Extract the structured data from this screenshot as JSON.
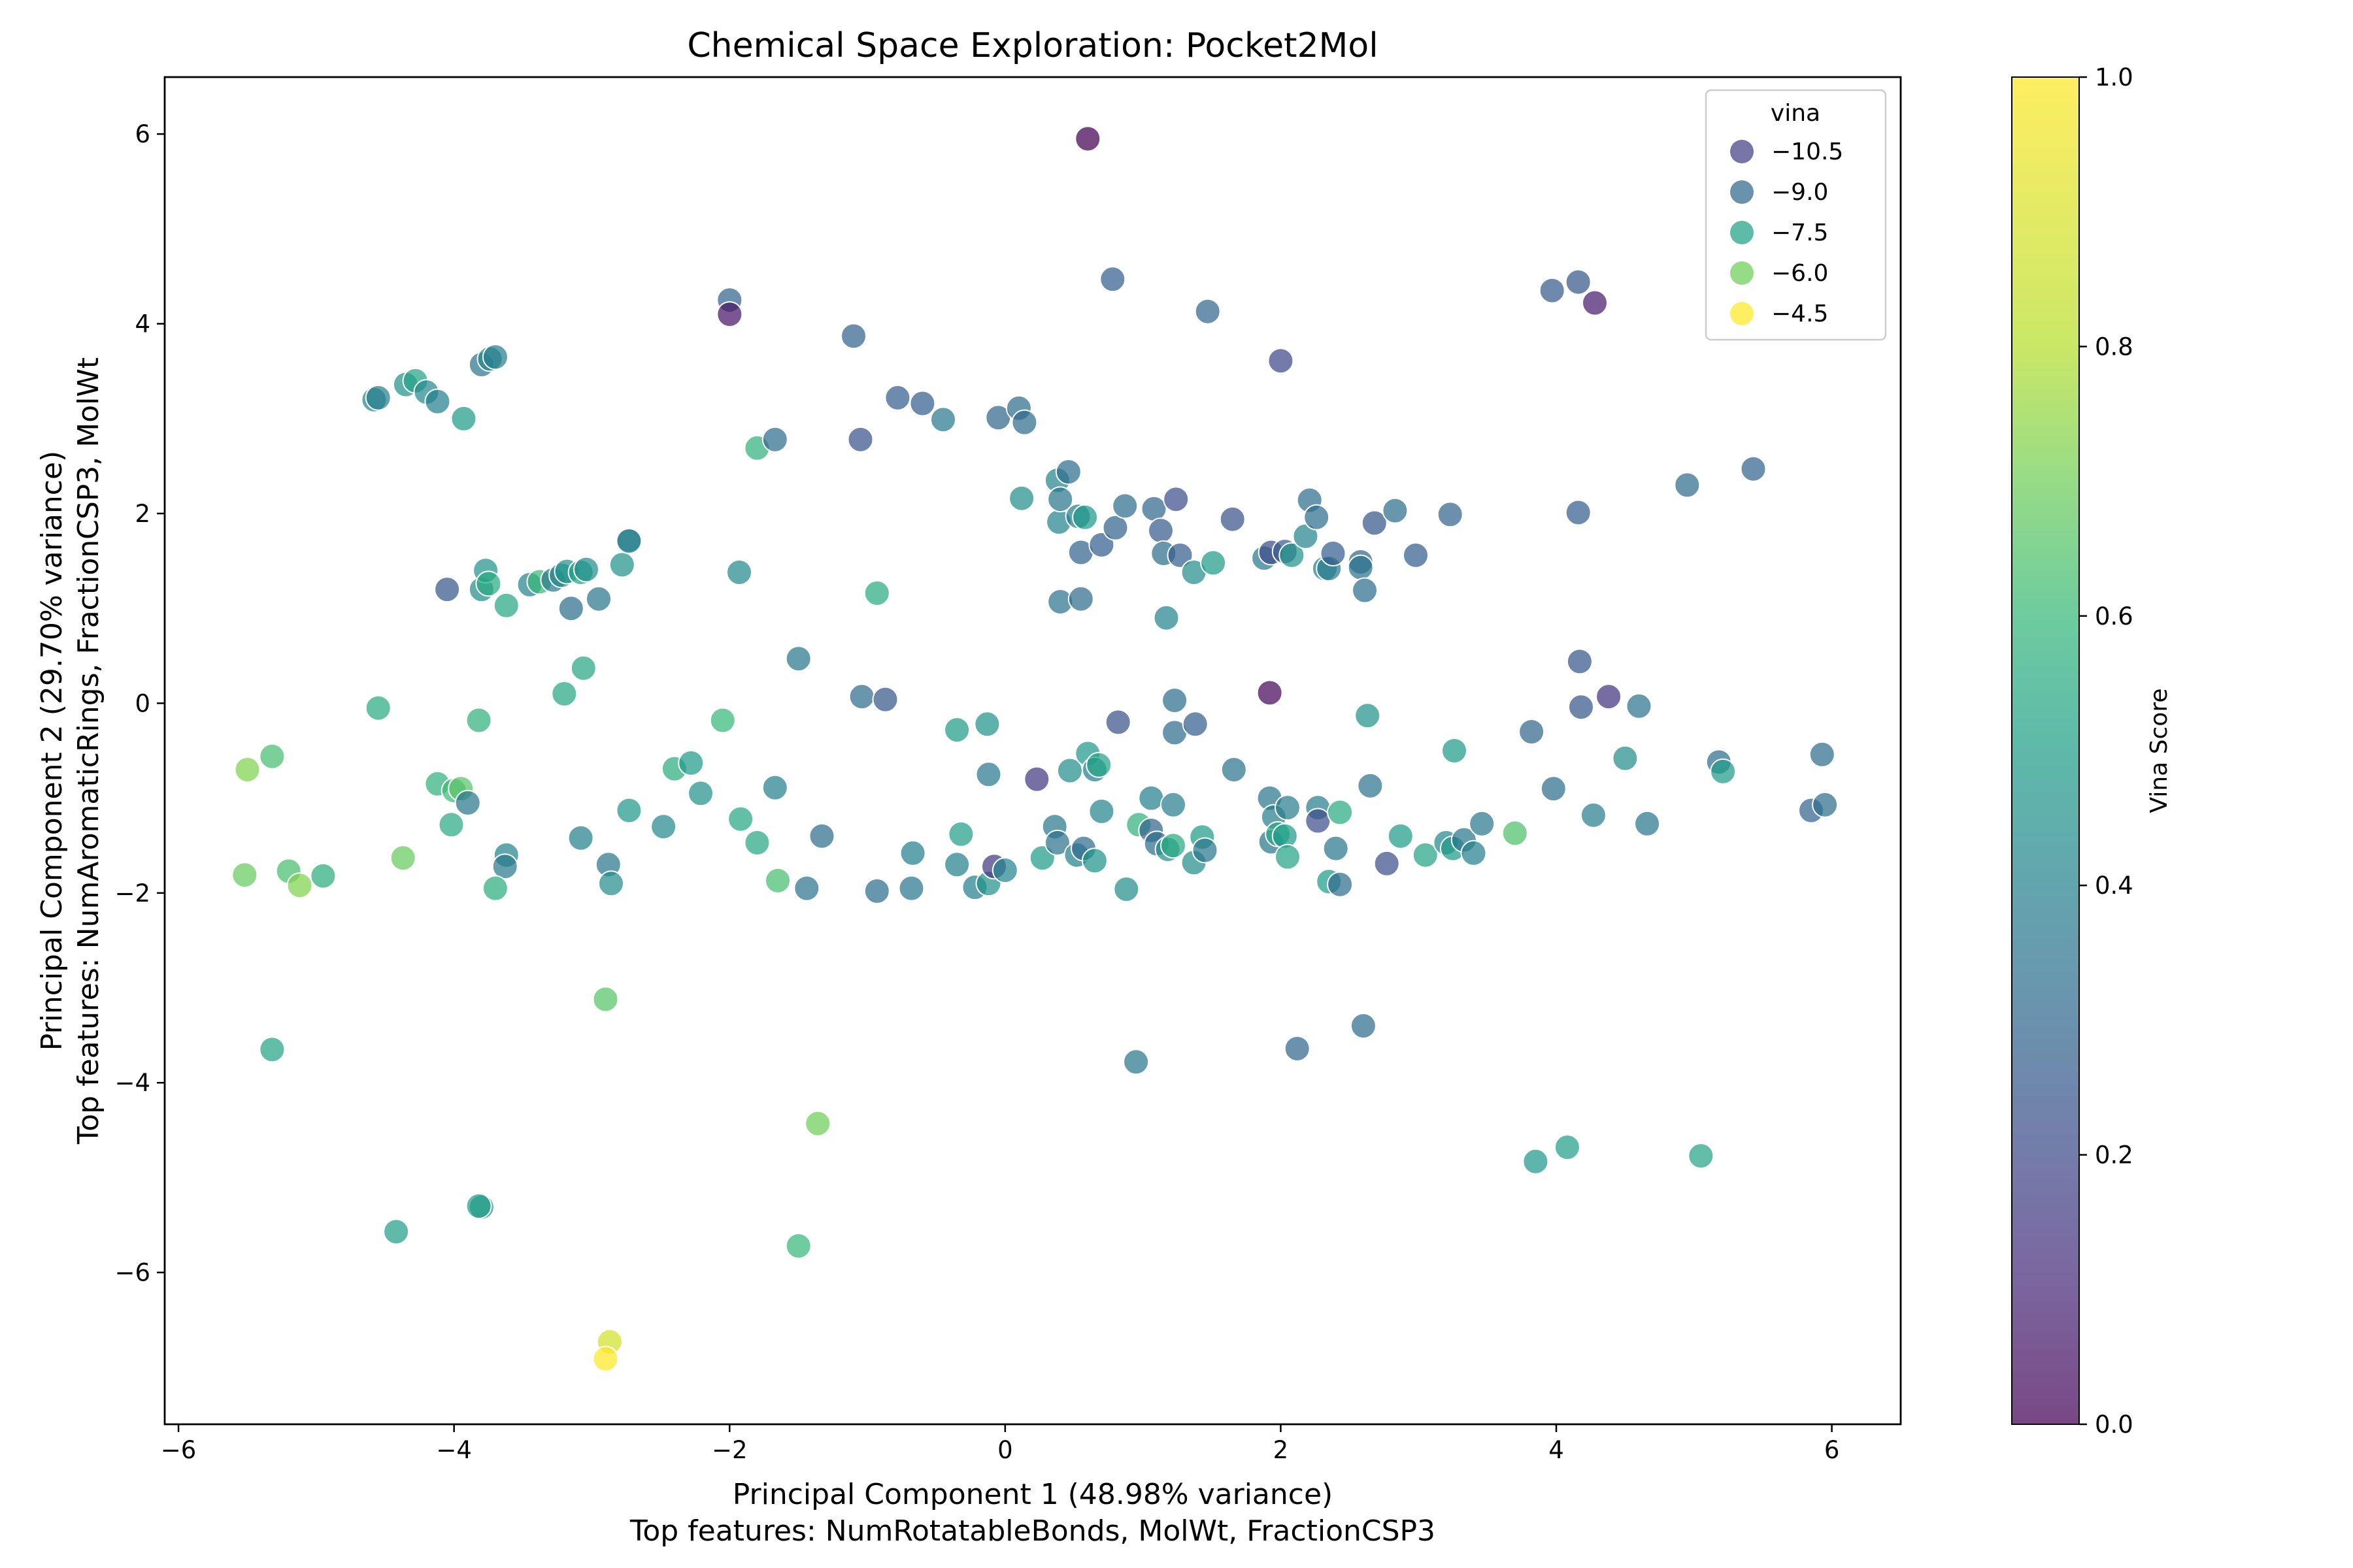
{
  "chart_data": {
    "type": "scatter",
    "title": "Chemical Space Exploration: Pocket2Mol",
    "xlabel": "Principal Component 1 (48.98% variance)",
    "xlabel_sub": "Top features: NumRotatableBonds, MolWt, FractionCSP3",
    "ylabel": "Principal Component 2 (29.70% variance)",
    "ylabel_sub": "Top features: NumAromaticRings, FractionCSP3, MolWt",
    "xlim": [
      -6.1,
      6.5
    ],
    "ylim": [
      -7.6,
      6.6
    ],
    "xticks": [
      -6,
      -4,
      -2,
      0,
      2,
      4,
      6
    ],
    "yticks": [
      -6,
      -4,
      -2,
      0,
      2,
      4,
      6
    ],
    "grid": false,
    "colorbar": {
      "label": "Vina Score",
      "range": [
        0.0,
        1.0
      ],
      "ticks": [
        "0.0",
        "0.2",
        "0.4",
        "0.6",
        "0.8",
        "1.0"
      ],
      "colormap": "viridis"
    },
    "legend": {
      "title": "vina",
      "placement": "top-right",
      "entries": [
        {
          "label": "−10.5",
          "color": "#433e85"
        },
        {
          "label": "−9.0",
          "color": "#31688e"
        },
        {
          "label": "−7.5",
          "color": "#1fa187"
        },
        {
          "label": "−6.0",
          "color": "#6ece58"
        },
        {
          "label": "−4.5",
          "color": "#fde725"
        }
      ]
    },
    "points_note": "each point: [pc1, pc2, vina]",
    "points": [
      [
        0.6,
        5.95,
        -11.6
      ],
      [
        -2.0,
        4.25,
        -9.5
      ],
      [
        -2.0,
        4.1,
        -11.2
      ],
      [
        -1.1,
        3.87,
        -9.5
      ],
      [
        0.78,
        4.47,
        -9.6
      ],
      [
        1.47,
        4.13,
        -9.4
      ],
      [
        2.0,
        3.61,
        -10.2
      ],
      [
        3.97,
        4.35,
        -9.7
      ],
      [
        4.16,
        4.44,
        -9.8
      ],
      [
        4.28,
        4.22,
        -11.1
      ],
      [
        -4.58,
        3.2,
        -8.6
      ],
      [
        -4.55,
        3.22,
        -8.8
      ],
      [
        -4.35,
        3.36,
        -8.3
      ],
      [
        -4.28,
        3.4,
        -7.8
      ],
      [
        -4.2,
        3.28,
        -8.5
      ],
      [
        -4.12,
        3.18,
        -8.7
      ],
      [
        -3.93,
        3.0,
        -8.0
      ],
      [
        -3.8,
        3.57,
        -9.0
      ],
      [
        -3.74,
        3.63,
        -8.5
      ],
      [
        -3.7,
        3.65,
        -8.8
      ],
      [
        -1.8,
        2.69,
        -7.4
      ],
      [
        -1.67,
        2.78,
        -9.3
      ],
      [
        -1.05,
        2.78,
        -9.9
      ],
      [
        -0.78,
        3.22,
        -9.6
      ],
      [
        -0.6,
        3.16,
        -9.6
      ],
      [
        -0.45,
        2.99,
        -8.9
      ],
      [
        -0.05,
        3.01,
        -9.4
      ],
      [
        0.1,
        3.11,
        -9.2
      ],
      [
        0.14,
        2.96,
        -9.3
      ],
      [
        -4.05,
        1.2,
        -9.8
      ],
      [
        -3.8,
        1.2,
        -8.4
      ],
      [
        -3.77,
        1.4,
        -8.2
      ],
      [
        -3.75,
        1.26,
        -7.6
      ],
      [
        -3.62,
        1.03,
        -7.7
      ],
      [
        -3.45,
        1.25,
        -8.6
      ],
      [
        -3.38,
        1.28,
        -7.2
      ],
      [
        -3.28,
        1.3,
        -8.9
      ],
      [
        -3.22,
        1.35,
        -8.5
      ],
      [
        -3.18,
        1.39,
        -8.2
      ],
      [
        -3.15,
        1.0,
        -9.2
      ],
      [
        -3.08,
        1.38,
        -7.8
      ],
      [
        -3.04,
        1.41,
        -8.4
      ],
      [
        -2.95,
        1.1,
        -9.0
      ],
      [
        -2.78,
        1.46,
        -8.3
      ],
      [
        -2.73,
        1.72,
        -8.9
      ],
      [
        -2.73,
        1.71,
        -8.7
      ],
      [
        -1.93,
        1.38,
        -8.5
      ],
      [
        -0.93,
        1.16,
        -7.6
      ],
      [
        0.12,
        2.16,
        -8.4
      ],
      [
        0.38,
        2.35,
        -8.6
      ],
      [
        0.39,
        1.91,
        -8.6
      ],
      [
        0.4,
        2.15,
        -9.0
      ],
      [
        0.46,
        2.44,
        -9.2
      ],
      [
        0.53,
        1.97,
        -8.7
      ],
      [
        0.55,
        1.59,
        -9.5
      ],
      [
        0.58,
        1.96,
        -8.1
      ],
      [
        0.4,
        1.07,
        -9.1
      ],
      [
        0.55,
        1.1,
        -9.3
      ],
      [
        0.7,
        1.67,
        -9.6
      ],
      [
        0.8,
        1.85,
        -9.5
      ],
      [
        0.87,
        2.08,
        -9.2
      ],
      [
        1.08,
        2.05,
        -9.4
      ],
      [
        1.13,
        1.82,
        -9.7
      ],
      [
        1.15,
        1.58,
        -9.2
      ],
      [
        1.24,
        2.15,
        -10.0
      ],
      [
        1.27,
        1.56,
        -9.6
      ],
      [
        1.37,
        1.38,
        -8.4
      ],
      [
        1.51,
        1.48,
        -8.0
      ],
      [
        1.65,
        1.94,
        -9.9
      ],
      [
        1.88,
        1.53,
        -8.9
      ],
      [
        1.93,
        1.59,
        -10.1
      ],
      [
        2.03,
        1.6,
        -9.7
      ],
      [
        2.08,
        1.56,
        -8.3
      ],
      [
        2.18,
        1.76,
        -8.6
      ],
      [
        2.21,
        2.14,
        -9.2
      ],
      [
        2.26,
        1.96,
        -9.2
      ],
      [
        2.32,
        1.42,
        -8.7
      ],
      [
        2.35,
        1.42,
        -8.9
      ],
      [
        2.38,
        1.58,
        -9.6
      ],
      [
        2.58,
        1.49,
        -9.4
      ],
      [
        2.58,
        1.43,
        -9.1
      ],
      [
        2.61,
        1.19,
        -9.2
      ],
      [
        2.68,
        1.9,
        -9.8
      ],
      [
        2.83,
        2.03,
        -9.2
      ],
      [
        2.98,
        1.56,
        -9.6
      ],
      [
        3.23,
        1.99,
        -9.5
      ],
      [
        4.16,
        2.01,
        -9.6
      ],
      [
        4.95,
        2.3,
        -9.3
      ],
      [
        5.43,
        2.47,
        -9.5
      ],
      [
        1.17,
        0.9,
        -8.6
      ],
      [
        -1.5,
        0.47,
        -9.0
      ],
      [
        -4.55,
        -0.05,
        -7.6
      ],
      [
        -3.82,
        -0.18,
        -7.4
      ],
      [
        -3.2,
        0.1,
        -7.7
      ],
      [
        -3.06,
        0.37,
        -7.7
      ],
      [
        -2.05,
        -0.18,
        -7.2
      ],
      [
        -1.04,
        0.07,
        -9.3
      ],
      [
        -0.87,
        0.04,
        -9.8
      ],
      [
        0.82,
        -0.2,
        -9.9
      ],
      [
        1.23,
        0.03,
        -9.2
      ],
      [
        1.23,
        -0.31,
        -9.3
      ],
      [
        1.38,
        -0.22,
        -9.6
      ],
      [
        1.66,
        -0.7,
        -9.1
      ],
      [
        1.92,
        0.11,
        -11.5
      ],
      [
        2.63,
        -0.13,
        -8.2
      ],
      [
        2.65,
        -0.87,
        -9.1
      ],
      [
        3.26,
        -0.5,
        -8.0
      ],
      [
        3.82,
        -0.3,
        -9.4
      ],
      [
        3.98,
        -0.9,
        -9.2
      ],
      [
        4.17,
        0.44,
        -9.8
      ],
      [
        4.18,
        -0.04,
        -9.8
      ],
      [
        4.38,
        0.07,
        -10.6
      ],
      [
        4.5,
        -0.58,
        -8.4
      ],
      [
        4.6,
        -0.03,
        -9.1
      ],
      [
        4.27,
        -1.18,
        -8.8
      ],
      [
        4.66,
        -1.27,
        -9.0
      ],
      [
        5.18,
        -0.62,
        -9.2
      ],
      [
        5.21,
        -0.72,
        -8.0
      ],
      [
        5.85,
        -1.13,
        -9.5
      ],
      [
        5.93,
        -0.54,
        -9.3
      ],
      [
        5.95,
        -1.07,
        -9.2
      ],
      [
        0.23,
        -0.8,
        -10.5
      ],
      [
        0.47,
        -0.71,
        -8.4
      ],
      [
        0.6,
        -0.53,
        -8.1
      ],
      [
        0.65,
        -0.7,
        -8.7
      ],
      [
        0.68,
        -0.65,
        -7.8
      ],
      [
        0.7,
        -1.14,
        -8.6
      ],
      [
        1.06,
        -1.0,
        -8.7
      ],
      [
        1.22,
        -1.07,
        -8.8
      ],
      [
        -0.35,
        -0.28,
        -8.0
      ],
      [
        -0.13,
        -0.22,
        -8.2
      ],
      [
        -0.12,
        -0.75,
        -8.9
      ],
      [
        -5.5,
        -0.7,
        -6.3
      ],
      [
        -5.32,
        -0.56,
        -7.0
      ],
      [
        -5.52,
        -1.81,
        -6.6
      ],
      [
        -5.2,
        -1.77,
        -7.0
      ],
      [
        -5.12,
        -1.92,
        -6.3
      ],
      [
        -4.95,
        -1.82,
        -7.5
      ],
      [
        -4.37,
        -1.63,
        -6.6
      ],
      [
        -4.12,
        -0.85,
        -7.4
      ],
      [
        -4.0,
        -0.92,
        -7.1
      ],
      [
        -3.95,
        -0.9,
        -6.8
      ],
      [
        -3.9,
        -1.05,
        -9.0
      ],
      [
        -4.02,
        -1.28,
        -7.6
      ],
      [
        -3.62,
        -1.6,
        -8.6
      ],
      [
        -3.63,
        -1.72,
        -8.9
      ],
      [
        -3.7,
        -1.95,
        -7.5
      ],
      [
        -3.08,
        -1.42,
        -8.7
      ],
      [
        -2.88,
        -1.7,
        -9.0
      ],
      [
        -2.86,
        -1.9,
        -8.4
      ],
      [
        -2.73,
        -1.13,
        -8.1
      ],
      [
        -2.48,
        -1.3,
        -8.5
      ],
      [
        -2.4,
        -0.69,
        -7.5
      ],
      [
        -2.28,
        -0.63,
        -8.0
      ],
      [
        -2.21,
        -0.95,
        -8.3
      ],
      [
        -1.92,
        -1.22,
        -7.7
      ],
      [
        -1.8,
        -1.47,
        -7.7
      ],
      [
        -1.67,
        -0.89,
        -8.7
      ],
      [
        -1.65,
        -1.87,
        -7.0
      ],
      [
        -1.44,
        -1.95,
        -9.1
      ],
      [
        -1.33,
        -1.4,
        -9.2
      ],
      [
        -0.93,
        -1.98,
        -9.2
      ],
      [
        -0.68,
        -1.95,
        -9.0
      ],
      [
        -0.67,
        -1.58,
        -8.7
      ],
      [
        -0.35,
        -1.7,
        -8.7
      ],
      [
        -0.32,
        -1.38,
        -7.9
      ],
      [
        -0.22,
        -1.94,
        -8.7
      ],
      [
        -0.12,
        -1.9,
        -8.3
      ],
      [
        -0.08,
        -1.72,
        -10.5
      ],
      [
        0.0,
        -1.76,
        -8.6
      ],
      [
        0.27,
        -1.63,
        -8.0
      ],
      [
        0.36,
        -1.3,
        -8.9
      ],
      [
        0.38,
        -1.47,
        -9.1
      ],
      [
        0.52,
        -1.6,
        -8.7
      ],
      [
        0.57,
        -1.53,
        -9.3
      ],
      [
        0.65,
        -1.66,
        -8.2
      ],
      [
        0.88,
        -1.96,
        -8.4
      ],
      [
        0.97,
        -1.28,
        -7.4
      ],
      [
        1.06,
        -1.34,
        -9.5
      ],
      [
        1.1,
        -1.48,
        -9.2
      ],
      [
        1.18,
        -1.54,
        -8.3
      ],
      [
        1.22,
        -1.5,
        -7.6
      ],
      [
        1.37,
        -1.68,
        -8.4
      ],
      [
        1.43,
        -1.41,
        -8.0
      ],
      [
        1.45,
        -1.55,
        -9.0
      ],
      [
        1.92,
        -1.0,
        -9.0
      ],
      [
        1.93,
        -1.46,
        -9.0
      ],
      [
        1.95,
        -1.2,
        -8.8
      ],
      [
        1.98,
        -1.38,
        -7.6
      ],
      [
        2.03,
        -1.4,
        -8.0
      ],
      [
        2.05,
        -1.1,
        -8.8
      ],
      [
        2.05,
        -1.62,
        -7.8
      ],
      [
        2.27,
        -1.1,
        -8.8
      ],
      [
        2.27,
        -1.24,
        -10.0
      ],
      [
        2.35,
        -1.88,
        -8.0
      ],
      [
        2.4,
        -1.53,
        -9.0
      ],
      [
        2.43,
        -1.91,
        -9.3
      ],
      [
        2.43,
        -1.15,
        -7.6
      ],
      [
        2.77,
        -1.69,
        -10.0
      ],
      [
        2.87,
        -1.4,
        -8.0
      ],
      [
        3.05,
        -1.6,
        -7.8
      ],
      [
        3.2,
        -1.47,
        -8.5
      ],
      [
        3.25,
        -1.53,
        -8.0
      ],
      [
        3.33,
        -1.44,
        -9.0
      ],
      [
        3.4,
        -1.58,
        -8.7
      ],
      [
        3.46,
        -1.27,
        -8.9
      ],
      [
        3.7,
        -1.37,
        -6.9
      ],
      [
        -5.32,
        -3.65,
        -7.8
      ],
      [
        -2.9,
        -3.12,
        -6.8
      ],
      [
        0.95,
        -3.78,
        -9.0
      ],
      [
        2.12,
        -3.64,
        -9.4
      ],
      [
        2.6,
        -3.4,
        -9.2
      ],
      [
        -4.42,
        -5.57,
        -7.9
      ],
      [
        -3.8,
        -5.31,
        -8.4
      ],
      [
        -3.82,
        -5.3,
        -7.9
      ],
      [
        -1.36,
        -4.43,
        -6.5
      ],
      [
        -1.5,
        -5.72,
        -7.2
      ],
      [
        3.85,
        -4.83,
        -8.1
      ],
      [
        4.08,
        -4.68,
        -7.9
      ],
      [
        5.05,
        -4.77,
        -7.8
      ],
      [
        -2.87,
        -6.73,
        -5.2
      ],
      [
        -2.9,
        -6.91,
        -4.3
      ]
    ]
  }
}
